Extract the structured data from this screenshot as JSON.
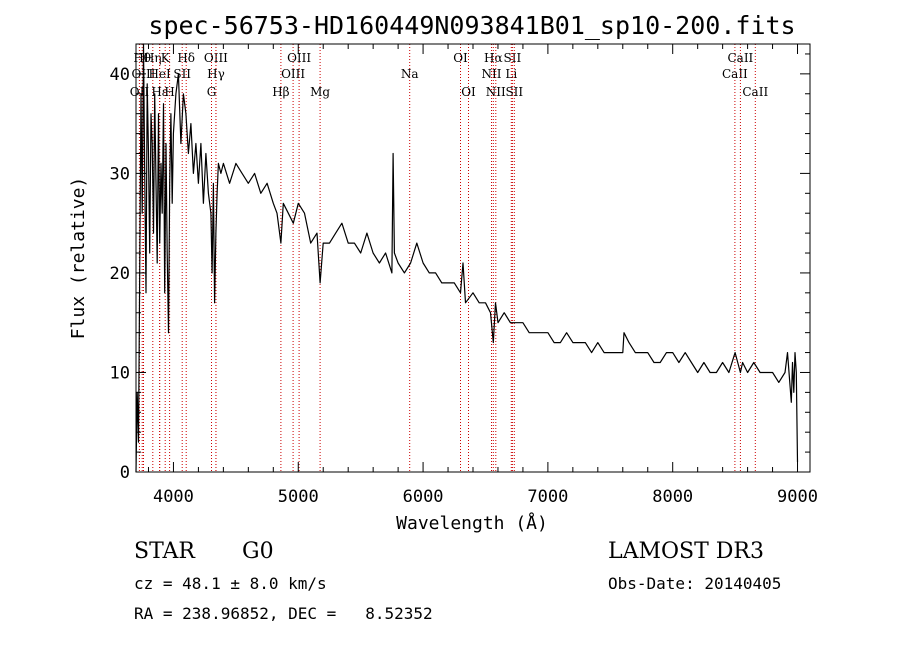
{
  "chart_data": {
    "type": "line",
    "title": "spec-56753-HD160449N093841B01_sp10-200.fits",
    "xlabel": "Wavelength (Å)",
    "ylabel": "Flux (relative)",
    "xlim": [
      3700,
      9100
    ],
    "ylim": [
      0,
      43
    ],
    "x_ticks": [
      4000,
      5000,
      6000,
      7000,
      8000,
      9000
    ],
    "x_tick_labels": [
      "4000",
      "5000",
      "6000",
      "7000",
      "8000",
      "9000"
    ],
    "y_ticks": [
      0,
      10,
      20,
      30,
      40
    ],
    "y_tick_labels": [
      "0",
      "10",
      "20",
      "30",
      "40"
    ],
    "grid": false,
    "legend": "none",
    "series": [
      {
        "name": "flux",
        "color": "#000000",
        "x": [
          3700,
          3710,
          3720,
          3730,
          3740,
          3750,
          3760,
          3770,
          3780,
          3790,
          3800,
          3810,
          3820,
          3830,
          3840,
          3850,
          3860,
          3870,
          3880,
          3890,
          3900,
          3910,
          3920,
          3930,
          3940,
          3950,
          3960,
          3970,
          3980,
          3990,
          4000,
          4020,
          4040,
          4060,
          4080,
          4100,
          4120,
          4140,
          4160,
          4180,
          4200,
          4220,
          4240,
          4260,
          4280,
          4300,
          4310,
          4320,
          4330,
          4340,
          4350,
          4360,
          4380,
          4400,
          4450,
          4500,
          4550,
          4600,
          4650,
          4700,
          4750,
          4800,
          4830,
          4861,
          4880,
          4920,
          4960,
          5000,
          5050,
          5100,
          5150,
          5175,
          5200,
          5250,
          5300,
          5350,
          5400,
          5450,
          5500,
          5550,
          5600,
          5650,
          5700,
          5750,
          5760,
          5770,
          5800,
          5850,
          5900,
          5950,
          6000,
          6050,
          6100,
          6150,
          6200,
          6250,
          6300,
          6320,
          6340,
          6400,
          6450,
          6500,
          6540,
          6563,
          6580,
          6600,
          6650,
          6700,
          6750,
          6800,
          6850,
          6900,
          6950,
          7000,
          7050,
          7100,
          7150,
          7200,
          7250,
          7300,
          7350,
          7400,
          7450,
          7500,
          7550,
          7600,
          7610,
          7650,
          7700,
          7750,
          7800,
          7850,
          7900,
          7950,
          8000,
          8050,
          8100,
          8150,
          8200,
          8250,
          8300,
          8350,
          8400,
          8450,
          8500,
          8542,
          8560,
          8600,
          8650,
          8700,
          8750,
          8800,
          8850,
          8900,
          8920,
          8950,
          8960,
          8970,
          8980,
          8990,
          9000
        ],
        "y": [
          0,
          8,
          3,
          20,
          38,
          26,
          43,
          30,
          18,
          39,
          32,
          22,
          36,
          33,
          24,
          38,
          29,
          21,
          36,
          23,
          31,
          26,
          37,
          18,
          33,
          22,
          14,
          29,
          36,
          27,
          34,
          38,
          40,
          33,
          38,
          36,
          32,
          35,
          30,
          33,
          29,
          33,
          27,
          32,
          28,
          26,
          20,
          29,
          17,
          24,
          28,
          31,
          30,
          31,
          29,
          31,
          30,
          29,
          30,
          28,
          29,
          27,
          26,
          23,
          27,
          26,
          25,
          27,
          26,
          23,
          24,
          19,
          23,
          23,
          24,
          25,
          23,
          23,
          22,
          24,
          22,
          21,
          22,
          20,
          32,
          22,
          21,
          20,
          21,
          23,
          21,
          20,
          20,
          19,
          19,
          19,
          18,
          21,
          17,
          18,
          17,
          17,
          16,
          13,
          17,
          15,
          16,
          15,
          15,
          15,
          14,
          14,
          14,
          14,
          13,
          13,
          14,
          13,
          13,
          13,
          12,
          13,
          12,
          12,
          12,
          12,
          14,
          13,
          12,
          12,
          12,
          11,
          11,
          12,
          12,
          11,
          12,
          11,
          10,
          11,
          10,
          10,
          11,
          10,
          12,
          10,
          11,
          10,
          11,
          10,
          10,
          10,
          9,
          10,
          12,
          7,
          11,
          8,
          12,
          10,
          1
        ]
      }
    ],
    "line_marker_color": "#cc0000",
    "line_markers": [
      {
        "label": "OII",
        "x": 3727,
        "row": 3
      },
      {
        "label": "Hθ",
        "x": 3750,
        "row": 1
      },
      {
        "label": "OIII",
        "x": 3760,
        "row": 2
      },
      {
        "label": "Hη",
        "x": 3835,
        "row": 1
      },
      {
        "label": "HeI",
        "x": 3889,
        "row": 2
      },
      {
        "label": "Hε",
        "x": 3890,
        "row": 3
      },
      {
        "label": "K",
        "x": 3934,
        "row": 1
      },
      {
        "label": "H",
        "x": 3969,
        "row": 3
      },
      {
        "label": "SII",
        "x": 4070,
        "row": 2
      },
      {
        "label": "Hδ",
        "x": 4102,
        "row": 1
      },
      {
        "label": "G",
        "x": 4305,
        "row": 3
      },
      {
        "label": "OIII",
        "x": 4340,
        "row": 1
      },
      {
        "label": "Hγ",
        "x": 4341,
        "row": 2
      },
      {
        "label": "Hβ",
        "x": 4861,
        "row": 3
      },
      {
        "label": "OIII",
        "x": 4959,
        "row": 2
      },
      {
        "label": "OIII",
        "x": 5007,
        "row": 1
      },
      {
        "label": "Mg",
        "x": 5175,
        "row": 3
      },
      {
        "label": "Na",
        "x": 5893,
        "row": 2
      },
      {
        "label": "OI",
        "x": 6300,
        "row": 1
      },
      {
        "label": "OI",
        "x": 6364,
        "row": 3
      },
      {
        "label": "NII",
        "x": 6548,
        "row": 2
      },
      {
        "label": "Hα",
        "x": 6563,
        "row": 1
      },
      {
        "label": "NII",
        "x": 6583,
        "row": 3
      },
      {
        "label": "Li",
        "x": 6707,
        "row": 2
      },
      {
        "label": "SII",
        "x": 6716,
        "row": 1
      },
      {
        "label": "SII",
        "x": 6731,
        "row": 3
      },
      {
        "label": "CaII",
        "x": 8498,
        "row": 2
      },
      {
        "label": "CaII",
        "x": 8542,
        "row": 1
      },
      {
        "label": "CaII",
        "x": 8662,
        "row": 3
      }
    ]
  },
  "info": {
    "object_class": "STAR",
    "subclass": "G0",
    "survey": "LAMOST DR3",
    "redshift": "cz = 48.1 ± 8.0 km/s",
    "obs_date": "Obs-Date: 20140405",
    "coordinates": "RA = 238.96852, DEC =   8.52352"
  }
}
